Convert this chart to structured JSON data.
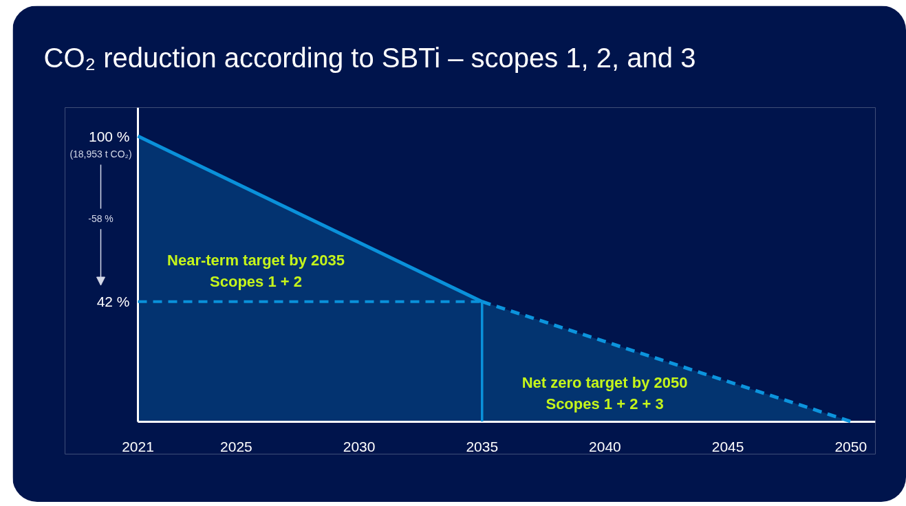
{
  "chart_data": {
    "type": "area",
    "title": "CO₂ reduction according to SBTi – scopes 1, 2, and 3",
    "series": [
      {
        "color": "#0a91da",
        "x": [
          2021,
          2035
        ],
        "values": [
          100,
          42
        ],
        "line_style": "solid"
      },
      {
        "color": "#0c94dd",
        "x": [
          2035,
          2050
        ],
        "values": [
          42,
          0
        ],
        "line_style": "dashed"
      }
    ],
    "ref_lines": [
      {
        "axis": "y",
        "value": 42,
        "color": "#0a91da",
        "line_style": "dashed"
      },
      {
        "axis": "x",
        "value": 2035,
        "color": "#0a91da",
        "line_style": "solid"
      }
    ],
    "xlim": [
      2021,
      2051
    ],
    "xticks": [
      2021,
      2025,
      2030,
      2035,
      2040,
      2045,
      2050
    ],
    "ylim": [
      0,
      110
    ],
    "yticks": [
      {
        "value": 100,
        "label": "100 %"
      },
      {
        "value": 42,
        "label": "42 %"
      }
    ],
    "annotations": [
      "(18,953 t CO₂)",
      "-58 %",
      "Near-term target by 2035\nScopes 1 + 2",
      "Net zero target by 2050\nScopes 1 + 2 + 3"
    ],
    "grid": false
  }
}
